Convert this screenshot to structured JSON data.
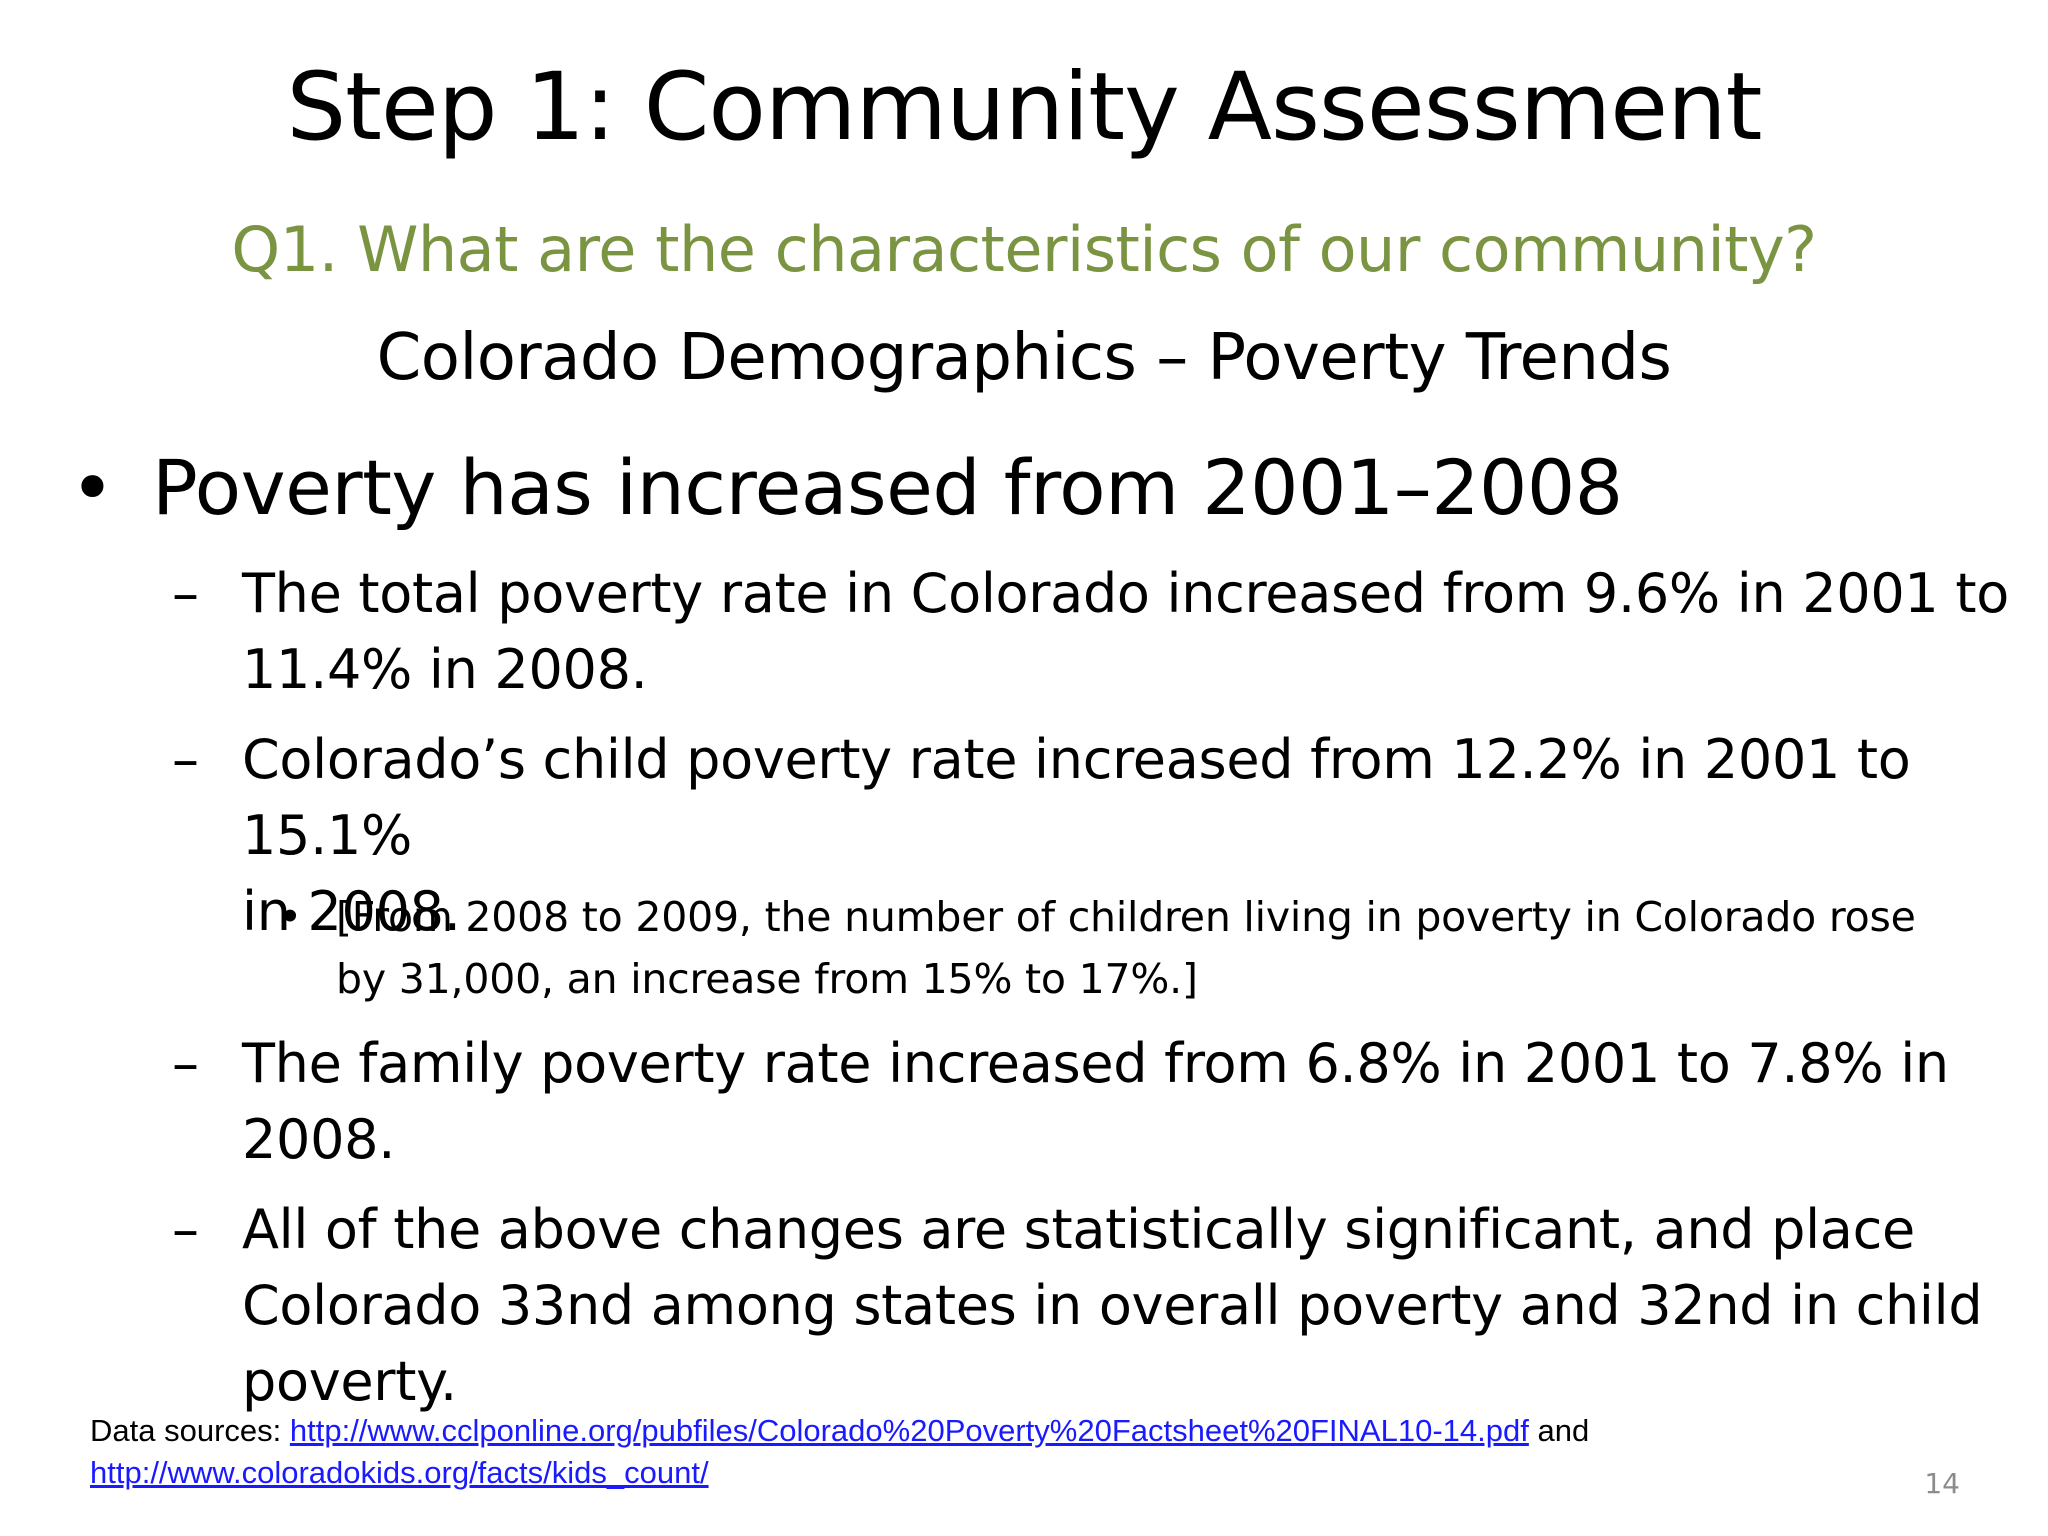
{
  "slide": {
    "title": "Step 1: Community Assessment",
    "subtitle": "Q1. What are the characteristics of our community?",
    "heading": "Colorado Demographics – Poverty Trends",
    "page_number": "14"
  },
  "colors": {
    "subtitle": "#7a9441",
    "link": "#1a1aff",
    "page_number": "#8c8c8c"
  },
  "bullets": {
    "main": {
      "marker": "•",
      "text": "Poverty has increased from 2001–2008"
    },
    "items": [
      {
        "marker": "–",
        "line1": "The total poverty rate in Colorado increased from 9.6% in 2001 to",
        "line2": "11.4% in 2008."
      },
      {
        "marker": "–",
        "line1": "Colorado’s child poverty rate increased from 12.2% in 2001 to 15.1%",
        "line2": "in 2008."
      },
      {
        "marker": "–",
        "line1": "The family poverty rate increased from 6.8% in 2001 to 7.8% in",
        "line2": "2008."
      },
      {
        "marker": "–",
        "line1": "All of the above changes are statistically significant, and place",
        "line2": "Colorado 33nd among states in overall poverty and 32nd in child",
        "line3": "poverty."
      }
    ],
    "sub_item": {
      "marker": "•",
      "line1": "[From 2008 to 2009, the number of children living in poverty in Colorado rose",
      "line2": "by 31,000, an increase from 15% to 17%.]"
    }
  },
  "sources": {
    "label": "Data sources: ",
    "link1": "http://www.cclponline.org/pubfiles/Colorado%20Poverty%20Factsheet%20FINAL10-14.pdf",
    "conjunction": " and",
    "link2": "http://www.coloradokids.org/facts/kids_count/"
  }
}
